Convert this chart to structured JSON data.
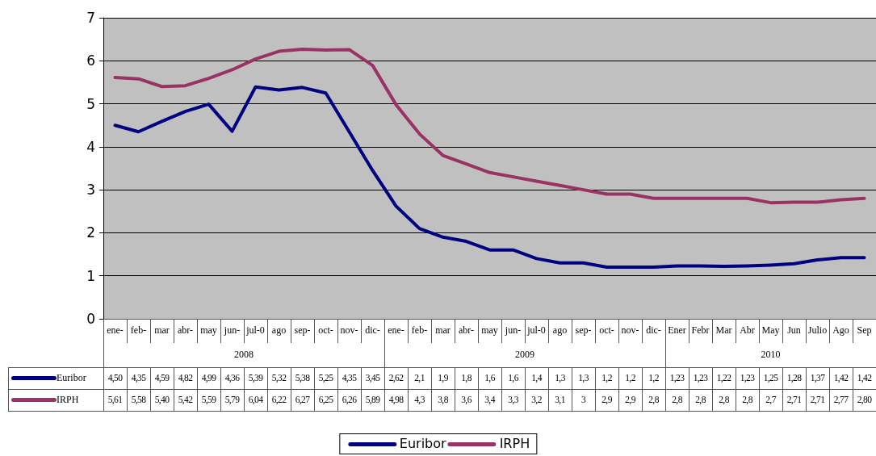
{
  "chart_data": {
    "type": "line",
    "categories": [
      "ene-",
      "feb-",
      "mar",
      "abr-",
      "may",
      "jun-",
      "jul-0",
      "ago",
      "sep-",
      "oct-",
      "nov-",
      "dic-",
      "ene-",
      "feb-",
      "mar",
      "abr-",
      "may",
      "jun-",
      "jul-0",
      "ago",
      "sep-",
      "oct-",
      "nov-",
      "dic-",
      "Ener",
      "Febr",
      "Mar",
      "Abr",
      "May",
      "Jun",
      "Julio",
      "Ago",
      "Sep"
    ],
    "series": [
      {
        "name": "Euribor",
        "color": "#000080",
        "values": [
          4.5,
          4.35,
          4.59,
          4.82,
          4.99,
          4.36,
          5.39,
          5.32,
          5.38,
          5.25,
          4.35,
          3.45,
          2.62,
          2.1,
          1.9,
          1.8,
          1.6,
          1.6,
          1.4,
          1.3,
          1.3,
          1.2,
          1.2,
          1.2,
          1.23,
          1.23,
          1.22,
          1.23,
          1.25,
          1.28,
          1.37,
          1.42,
          1.42
        ],
        "value_labels": [
          "4,50",
          "4,35",
          "4,59",
          "4,82",
          "4,99",
          "4,36",
          "5,39",
          "5,32",
          "5,38",
          "5,25",
          "4,35",
          "3,45",
          "2,62",
          "2,1",
          "1,9",
          "1,8",
          "1,6",
          "1,6",
          "1,4",
          "1,3",
          "1,3",
          "1,2",
          "1,2",
          "1,2",
          "1,23",
          "1,23",
          "1,22",
          "1,23",
          "1,25",
          "1,28",
          "1,37",
          "1,42",
          "1,42"
        ]
      },
      {
        "name": "IRPH",
        "color": "#993366",
        "values": [
          5.61,
          5.58,
          5.4,
          5.42,
          5.59,
          5.79,
          6.04,
          6.22,
          6.27,
          6.25,
          6.26,
          5.89,
          4.98,
          4.3,
          3.8,
          3.6,
          3.4,
          3.3,
          3.2,
          3.1,
          3,
          2.9,
          2.9,
          2.8,
          2.8,
          2.8,
          2.8,
          2.8,
          2.7,
          2.71,
          2.71,
          2.77,
          2.8
        ],
        "value_labels": [
          "5,61",
          "5,58",
          "5,40",
          "5,42",
          "5,59",
          "5,79",
          "6,04",
          "6,22",
          "6,27",
          "6,25",
          "6,26",
          "5,89",
          "4,98",
          "4,3",
          "3,8",
          "3,6",
          "3,4",
          "3,3",
          "3,2",
          "3,1",
          "3",
          "2,9",
          "2,9",
          "2,8",
          "2,8",
          "2,8",
          "2,8",
          "2,8",
          "2,7",
          "2,71",
          "2,71",
          "2,77",
          "2,80"
        ]
      }
    ],
    "annotations": [
      "2008",
      "2009",
      "2010"
    ],
    "ylim": [
      0,
      7
    ],
    "yticks": [
      0,
      1,
      2,
      3,
      4,
      5,
      6,
      7
    ],
    "grid": "y",
    "legend": "bottom",
    "marker": "none",
    "line_style": "solid"
  }
}
